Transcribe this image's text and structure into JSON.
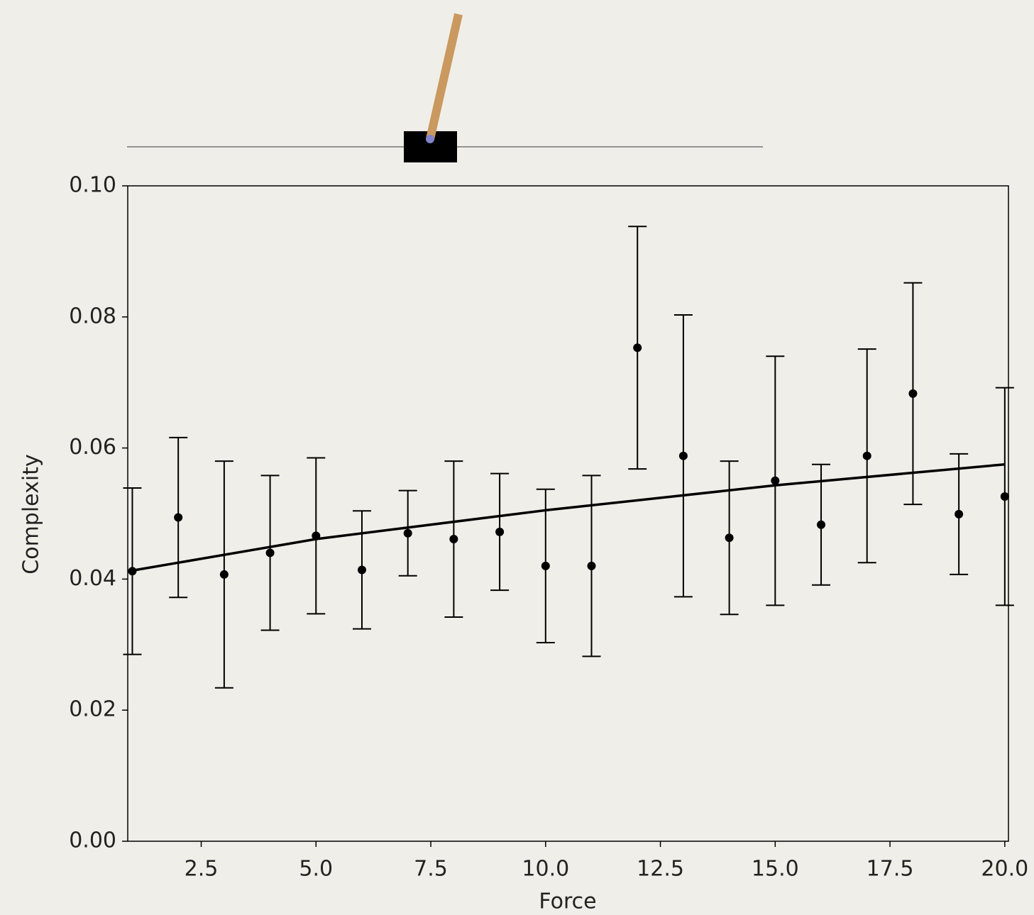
{
  "chart_data": {
    "type": "errorbar",
    "x_label": "Force",
    "y_label": "Complexity",
    "color": "#000000",
    "x": [
      1,
      2,
      3,
      4,
      5,
      6,
      7,
      8,
      9,
      10,
      11,
      12,
      13,
      14,
      15,
      16,
      17,
      18,
      19,
      20
    ],
    "values": [
      0.0412,
      0.0494,
      0.0407,
      0.044,
      0.0466,
      0.0414,
      0.047,
      0.0461,
      0.0472,
      0.042,
      0.042,
      0.0753,
      0.0588,
      0.0463,
      0.055,
      0.0483,
      0.0588,
      0.0683,
      0.0499,
      0.0526
    ],
    "errors": [
      0.0127,
      0.0122,
      0.0173,
      0.0118,
      0.0119,
      0.009,
      0.0065,
      0.0119,
      0.0089,
      0.0117,
      0.0138,
      0.0185,
      0.0215,
      0.0117,
      0.019,
      0.0092,
      0.0163,
      0.0169,
      0.0092,
      0.0166
    ],
    "trend": {
      "x": [
        1,
        5,
        10,
        15,
        20
      ],
      "values": [
        0.0413,
        0.0461,
        0.0505,
        0.0543,
        0.0575
      ]
    },
    "xlim": [
      0.9,
      20.08
    ],
    "ylim": [
      0,
      0.1
    ],
    "xticks": [
      2.5,
      {
        "value": 5,
        "label": "5.0"
      },
      7.5,
      {
        "value": 10,
        "label": "10.0"
      },
      12.5,
      {
        "value": 15,
        "label": "15.0"
      },
      17.5,
      {
        "value": 20,
        "label": "20.0"
      }
    ],
    "yticks": [
      {
        "value": 0,
        "label": "0.00"
      },
      {
        "value": 0.02,
        "label": "0.02"
      },
      {
        "value": 0.04,
        "label": "0.04"
      },
      {
        "value": 0.06,
        "label": "0.06"
      },
      {
        "value": 0.08,
        "label": "0.08"
      },
      {
        "value": 0.1,
        "label": "0.10"
      }
    ]
  }
}
